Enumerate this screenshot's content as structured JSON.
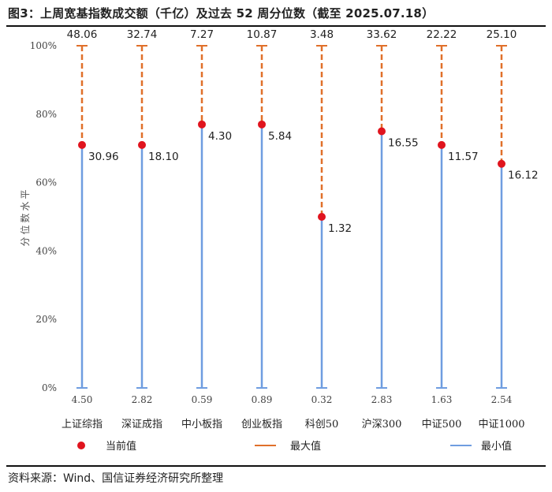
{
  "header": {
    "title": "图3：上周宽基指数成交额（千亿）及过去 52 周分位数（截至 2025.07.18）"
  },
  "footer": {
    "source": "资料来源：Wind、国信证券经济研究所整理"
  },
  "chart_data": {
    "type": "range-dot",
    "ylabel": "分位数水平",
    "ylim": [
      0,
      100
    ],
    "yticks": [
      "0%",
      "20%",
      "40%",
      "60%",
      "80%",
      "100%"
    ],
    "grid": false,
    "legend_position": "bottom",
    "categories": [
      "上证综指",
      "深证成指",
      "中小板指",
      "创业板指",
      "科创50",
      "沪深300",
      "中证500",
      "中证1000"
    ],
    "max_labels": [
      "48.06",
      "32.74",
      "7.27",
      "10.87",
      "3.48",
      "33.62",
      "22.22",
      "25.10"
    ],
    "min_labels": [
      "4.50",
      "2.82",
      "0.59",
      "0.89",
      "0.32",
      "2.83",
      "1.63",
      "2.54"
    ],
    "current_labels": [
      "30.96",
      "18.10",
      "4.30",
      "5.84",
      "1.32",
      "16.55",
      "11.57",
      "16.12"
    ],
    "current_percentile": [
      71,
      71,
      77,
      77,
      50,
      75,
      71,
      65.5
    ],
    "max_percentile": 100,
    "min_percentile": 0,
    "series": [
      {
        "name": "当前值",
        "color": "#e0141e",
        "marker": "dot"
      },
      {
        "name": "最大值",
        "color": "#e0702a",
        "marker": "dashed-line"
      },
      {
        "name": "最小值",
        "color": "#6f9de0",
        "marker": "solid-line"
      }
    ]
  }
}
